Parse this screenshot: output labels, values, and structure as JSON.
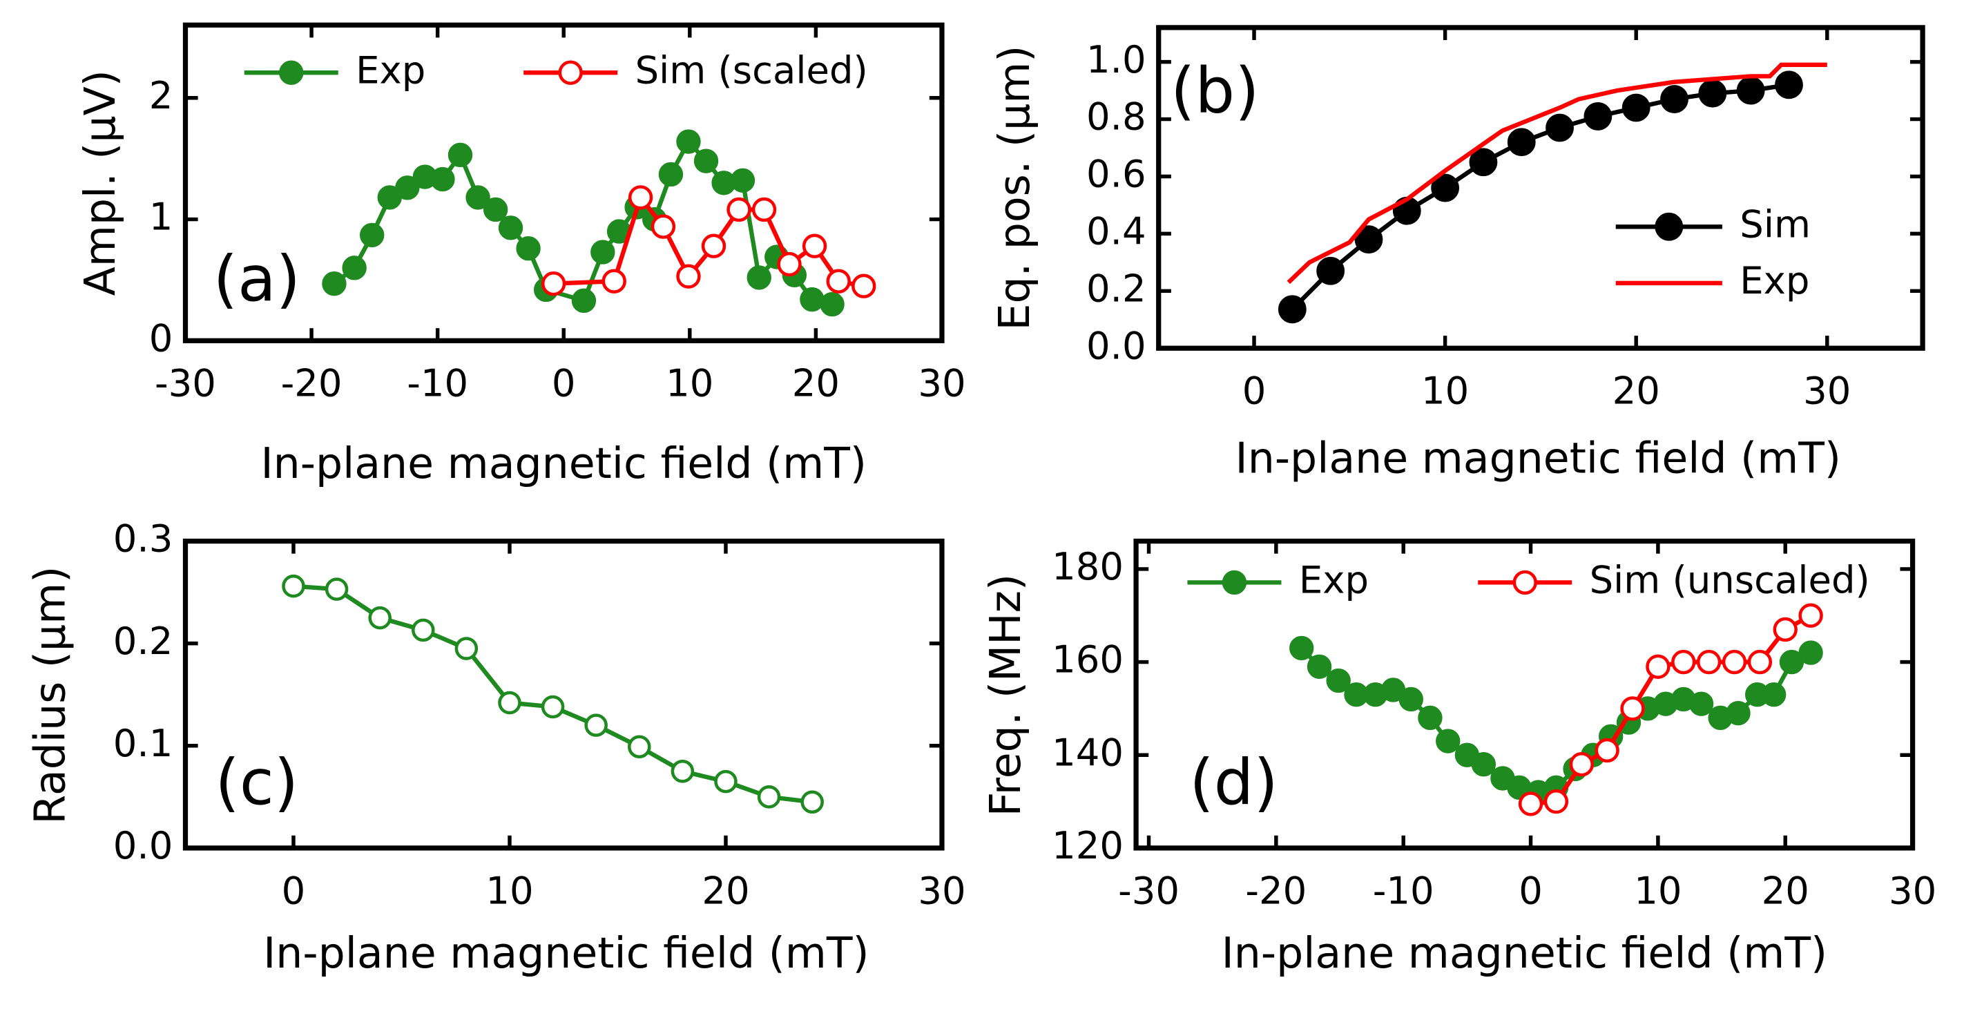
{
  "chart_data": [
    {
      "type": "line",
      "panel_label": "(a)",
      "xlabel": "In-plane magnetic field (mT)",
      "ylabel": "Ampl. (μV)",
      "xlim": [
        -30,
        30
      ],
      "xticks": [
        -30,
        -20,
        -10,
        0,
        10,
        20,
        30
      ],
      "ylim": [
        0,
        2.6
      ],
      "yticks": [
        0,
        1,
        2
      ],
      "legend": "top",
      "series": [
        {
          "name": "Exp",
          "color": "#1f8a1f",
          "marker": "filled",
          "x": [
            -18.2,
            -16.6,
            -15.2,
            -13.8,
            -12.4,
            -11,
            -9.6,
            -8.2,
            -6.8,
            -5.4,
            -4.2,
            -2.8,
            -1.4,
            1.6,
            3.1,
            4.4,
            5.8,
            7.2,
            8.5,
            9.9,
            11.3,
            12.7,
            14.2,
            15.5,
            16.9,
            18.3,
            19.7,
            21.3
          ],
          "values": [
            0.47,
            0.6,
            0.87,
            1.18,
            1.26,
            1.35,
            1.33,
            1.53,
            1.18,
            1.08,
            0.93,
            0.76,
            0.42,
            0.33,
            0.73,
            0.9,
            1.1,
            1.0,
            1.37,
            1.64,
            1.48,
            1.3,
            1.32,
            0.52,
            0.69,
            0.54,
            0.34,
            0.3
          ]
        },
        {
          "name": "Sim (scaled)",
          "color": "#ff0000",
          "marker": "open",
          "x": [
            -0.8,
            4,
            6.1,
            7.9,
            9.9,
            11.9,
            13.9,
            15.9,
            17.9,
            19.9,
            21.8,
            23.8
          ],
          "values": [
            0.47,
            0.49,
            1.18,
            0.94,
            0.53,
            0.78,
            1.08,
            1.08,
            0.63,
            0.78,
            0.49,
            0.45
          ]
        }
      ]
    },
    {
      "type": "line",
      "panel_label": "(b)",
      "xlabel": "In-plane magnetic field (mT)",
      "ylabel": "Eq. pos. (μm)",
      "xlim": [
        -5,
        35
      ],
      "xticks": [
        0,
        10,
        20,
        30
      ],
      "ylim": [
        0,
        1.12
      ],
      "yticks": [
        {
          "value": 0,
          "label": "0.0"
        },
        0.2,
        0.4,
        0.6,
        0.8,
        {
          "value": 1,
          "label": "1.0"
        }
      ],
      "legend": "right",
      "series": [
        {
          "name": "Sim",
          "color": "#000000",
          "marker": "filled",
          "x": [
            2,
            4,
            6,
            8,
            10,
            12,
            14,
            16,
            18,
            20,
            22,
            24,
            26,
            28
          ],
          "values": [
            0.136,
            0.27,
            0.38,
            0.48,
            0.56,
            0.65,
            0.72,
            0.77,
            0.81,
            0.84,
            0.87,
            0.89,
            0.9,
            0.92
          ]
        },
        {
          "name": "Exp",
          "color": "#ff0000",
          "x": [
            1.8,
            2.9,
            5,
            6,
            8,
            10,
            13,
            16,
            17,
            19,
            22,
            26,
            27,
            27.6,
            30
          ],
          "values": [
            0.23,
            0.3,
            0.37,
            0.45,
            0.52,
            0.62,
            0.76,
            0.84,
            0.87,
            0.9,
            0.93,
            0.95,
            0.95,
            0.99,
            0.99
          ]
        }
      ]
    },
    {
      "type": "line",
      "panel_label": "(c)",
      "xlabel": "In-plane magnetic field (mT)",
      "ylabel": "Radius (μm)",
      "xlim": [
        -5,
        30
      ],
      "xticks": [
        0,
        10,
        20,
        30
      ],
      "ylim": [
        0,
        0.3
      ],
      "yticks": [
        {
          "value": 0,
          "label": "0.0"
        },
        0.1,
        0.2,
        0.3
      ],
      "series": [
        {
          "color": "#1f8a1f",
          "marker": "open",
          "x": [
            0,
            2,
            4,
            6,
            8,
            10,
            12,
            14,
            16,
            18,
            20,
            22,
            24
          ],
          "values": [
            0.256,
            0.253,
            0.225,
            0.213,
            0.195,
            0.142,
            0.138,
            0.12,
            0.099,
            0.075,
            0.065,
            0.05,
            0.045
          ]
        }
      ]
    },
    {
      "type": "line",
      "panel_label": "(d)",
      "xlabel": "In-plane magnetic field (mT)",
      "ylabel": "Freq. (MHz)",
      "xlim": [
        -31,
        30
      ],
      "xticks": [
        -30,
        -20,
        -10,
        0,
        10,
        20,
        30
      ],
      "ylim": [
        120,
        186
      ],
      "yticks": [
        120,
        140,
        160,
        180
      ],
      "legend": "top",
      "series": [
        {
          "name": "Exp",
          "color": "#1f8a1f",
          "marker": "filled",
          "x": [
            -18,
            -16.6,
            -15.1,
            -13.7,
            -12.2,
            -10.8,
            -9.4,
            -7.9,
            -6.5,
            -5,
            -3.7,
            -2.2,
            -0.9,
            0.6,
            2,
            3.5,
            4.9,
            6.3,
            7.7,
            9.2,
            10.6,
            12,
            13.4,
            14.9,
            16.3,
            17.8,
            19.1,
            20.5,
            22
          ],
          "values": [
            163,
            159,
            156,
            153,
            153,
            154,
            152,
            148,
            143,
            140,
            138,
            135,
            133,
            132,
            133,
            137,
            140,
            144,
            147,
            150,
            151,
            152,
            151,
            148,
            149,
            153,
            153,
            160,
            162
          ]
        },
        {
          "name": "Sim (unscaled)",
          "color": "#ff0000",
          "marker": "open",
          "x": [
            0,
            2,
            4,
            6,
            8,
            10,
            12,
            14,
            16,
            18,
            20,
            22
          ],
          "values": [
            129.5,
            130,
            138,
            141,
            150,
            159,
            160,
            160,
            160,
            160,
            167,
            170
          ]
        }
      ]
    }
  ]
}
